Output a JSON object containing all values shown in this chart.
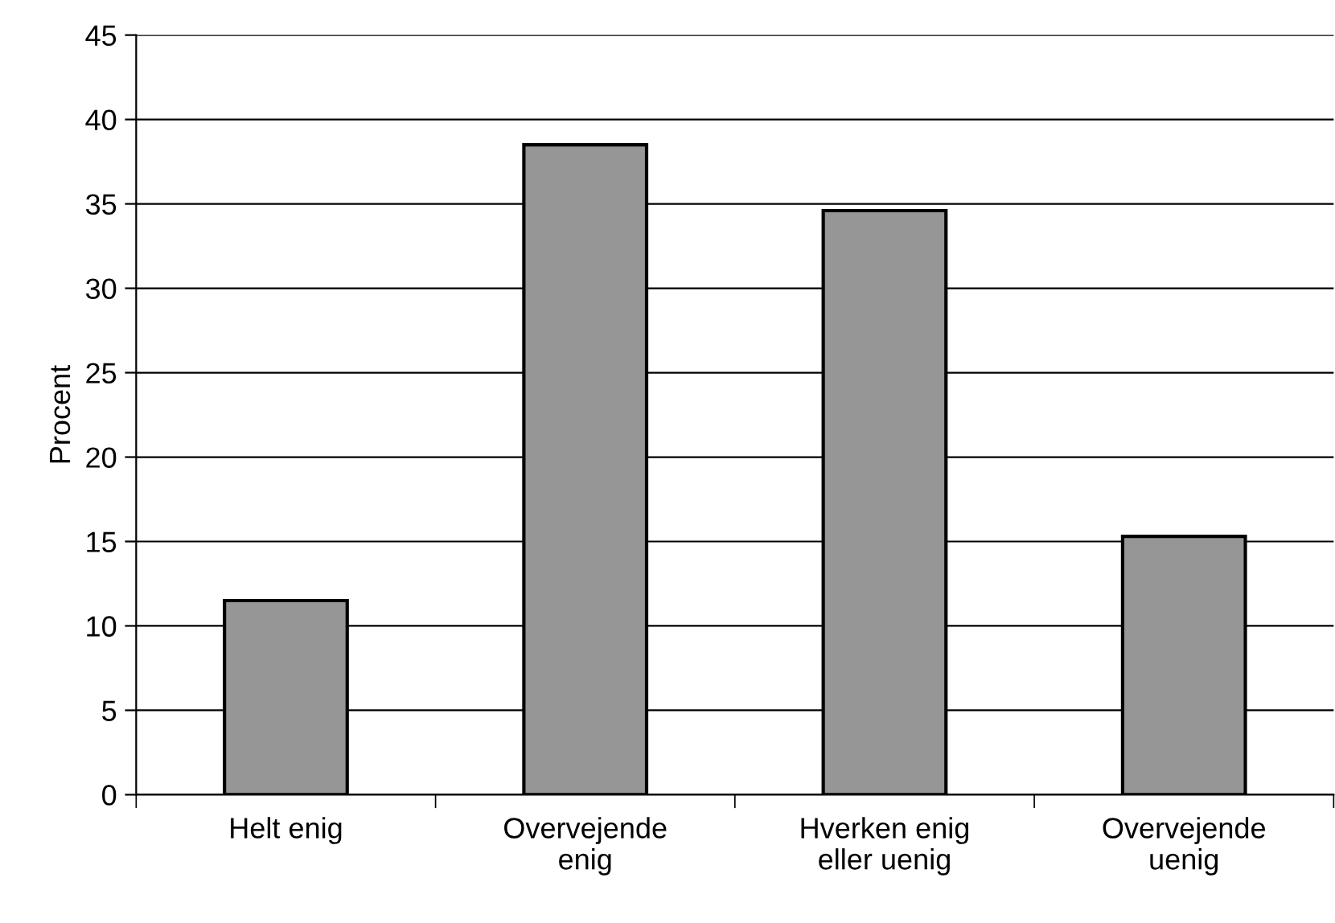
{
  "chart_data": {
    "type": "bar",
    "ylabel": "Procent",
    "categories": [
      "Helt enig",
      "Overvejende enig",
      "Hverken enig eller uenig",
      "Overvejende uenig"
    ],
    "values": [
      11.5,
      38.5,
      34.6,
      15.3
    ],
    "color": "#969696",
    "ylim": [
      0,
      45
    ],
    "yticks": [
      0,
      5,
      10,
      15,
      20,
      25,
      30,
      35,
      40,
      45
    ],
    "grid": "y",
    "legend": false
  }
}
